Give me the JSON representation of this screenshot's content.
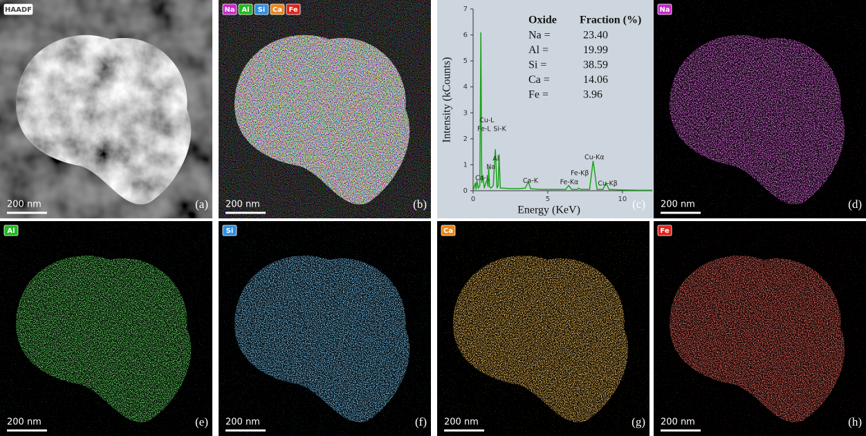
{
  "panels": [
    {
      "letter": "(a)",
      "mode": "haadf",
      "badges": [
        {
          "text": "HAADF",
          "color": "#ffffff"
        }
      ],
      "scale_bar": "200 nm"
    },
    {
      "letter": "(b)",
      "mode": "composite",
      "badges": [
        {
          "text": "Na",
          "color": "#c828c8"
        },
        {
          "text": "Al",
          "color": "#22b822"
        },
        {
          "text": "Si",
          "color": "#2f8fe0"
        },
        {
          "text": "Ca",
          "color": "#e8861a"
        },
        {
          "text": "Fe",
          "color": "#e0241c"
        }
      ],
      "scale_bar": "200 nm"
    },
    {
      "letter": "(c)",
      "mode": "spectrum"
    },
    {
      "letter": "(d)",
      "mode": "element",
      "badges": [
        {
          "text": "Na",
          "color": "#c828c8"
        }
      ],
      "scale_bar": "200 nm"
    },
    {
      "letter": "(e)",
      "mode": "element",
      "badges": [
        {
          "text": "Al",
          "color": "#22b822"
        }
      ],
      "scale_bar": "200 nm"
    },
    {
      "letter": "(f)",
      "mode": "element",
      "badges": [
        {
          "text": "Si",
          "color": "#2f8fe0"
        }
      ],
      "scale_bar": "200 nm"
    },
    {
      "letter": "(g)",
      "mode": "element",
      "badges": [
        {
          "text": "Ca",
          "color": "#e8861a"
        }
      ],
      "scale_bar": "200 nm"
    },
    {
      "letter": "(h)",
      "mode": "element",
      "badges": [
        {
          "text": "Fe",
          "color": "#e0241c"
        }
      ],
      "scale_bar": "200 nm"
    }
  ],
  "chart_data": {
    "type": "line",
    "x_label": "Energy (KeV)",
    "y_label": "Intensity (kCounts)",
    "color": "#1aa31a",
    "x": [
      0,
      0.15,
      0.2,
      0.25,
      0.35,
      0.45,
      0.52,
      0.58,
      0.65,
      0.75,
      0.85,
      0.93,
      1.0,
      1.04,
      1.1,
      1.2,
      1.35,
      1.49,
      1.6,
      1.68,
      1.74,
      1.82,
      2.0,
      2.5,
      3.0,
      3.5,
      3.69,
      3.85,
      4.5,
      5.5,
      6.2,
      6.4,
      6.6,
      7.0,
      7.06,
      7.2,
      7.8,
      8.04,
      8.3,
      8.7,
      8.9,
      9.1,
      10,
      11,
      12
    ],
    "values": [
      0,
      0.3,
      0.05,
      0.4,
      0.1,
      0.2,
      6.1,
      0.3,
      0.6,
      0.1,
      0.3,
      0.4,
      0.15,
      0.9,
      0.15,
      0.1,
      0.2,
      1.6,
      0.1,
      0.2,
      1.4,
      0.1,
      0.1,
      0.08,
      0.08,
      0.1,
      0.35,
      0.08,
      0.05,
      0.05,
      0.05,
      0.2,
      0.05,
      0.05,
      0.1,
      0.05,
      0.05,
      1.15,
      0.05,
      0.05,
      0.3,
      0.05,
      0.03,
      0.02,
      0.02
    ],
    "xlim": [
      0,
      12
    ],
    "xticks": [
      0,
      5,
      10
    ],
    "ylim": [
      0,
      7
    ],
    "yticks": [
      0,
      1,
      2,
      3,
      4,
      5,
      6,
      7
    ],
    "annotations": [
      {
        "text": "Ca-L",
        "x": 0.14,
        "y": 0.48
      },
      {
        "text": "Cu-L",
        "x": 0.42,
        "y": 2.7
      },
      {
        "text": "Fe-L",
        "x": 0.28,
        "y": 2.37
      },
      {
        "text": "Si-K",
        "x": 1.36,
        "y": 2.37
      },
      {
        "text": "Na",
        "x": 0.89,
        "y": 0.9
      },
      {
        "text": "Al",
        "x": 1.31,
        "y": 1.22
      },
      {
        "text": "Ca-K",
        "x": 3.33,
        "y": 0.37
      },
      {
        "text": "Fe-Kα",
        "x": 5.82,
        "y": 0.32
      },
      {
        "text": "Fe-Kβ",
        "x": 6.53,
        "y": 0.66
      },
      {
        "text": "Cu-Kα",
        "x": 7.46,
        "y": 1.28
      },
      {
        "text": "Cu-Kβ",
        "x": 8.36,
        "y": 0.27
      }
    ],
    "table": {
      "header": [
        "Oxide",
        "Fraction (%)"
      ],
      "rows": [
        [
          "Na =",
          "23.40"
        ],
        [
          "Al =",
          "19.99"
        ],
        [
          "Si  =",
          "38.59"
        ],
        [
          "Ca  =",
          "14.06"
        ],
        [
          "Fe  =",
          "3.96"
        ]
      ]
    }
  }
}
